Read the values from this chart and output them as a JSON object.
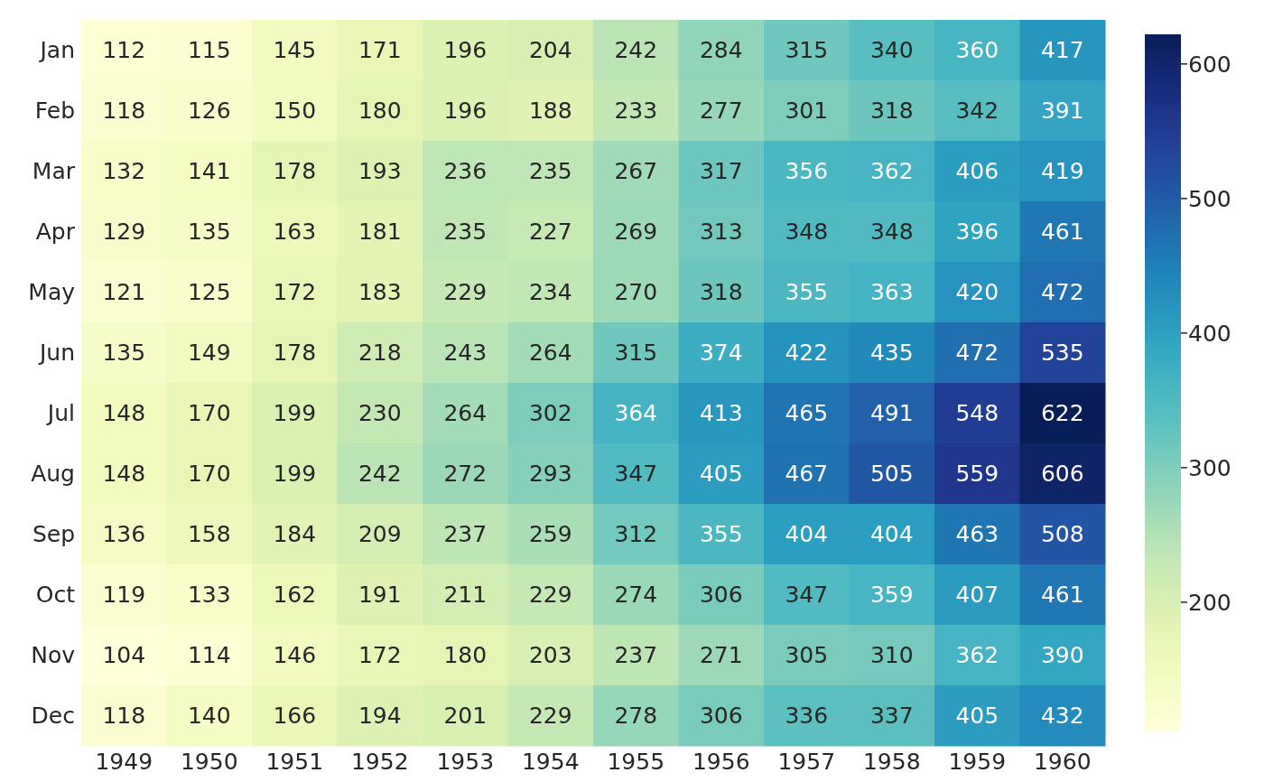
{
  "chart_data": {
    "type": "heatmap",
    "categories": [
      "1949",
      "1950",
      "1951",
      "1952",
      "1953",
      "1954",
      "1955",
      "1956",
      "1957",
      "1958",
      "1959",
      "1960"
    ],
    "y_categories": [
      "Jan",
      "Feb",
      "Mar",
      "Apr",
      "May",
      "Jun",
      "Jul",
      "Aug",
      "Sep",
      "Oct",
      "Nov",
      "Dec"
    ],
    "cells": [
      [
        112,
        115,
        145,
        171,
        196,
        204,
        242,
        284,
        315,
        340,
        360,
        417
      ],
      [
        118,
        126,
        150,
        180,
        196,
        188,
        233,
        277,
        301,
        318,
        342,
        391
      ],
      [
        132,
        141,
        178,
        193,
        236,
        235,
        267,
        317,
        356,
        362,
        406,
        419
      ],
      [
        129,
        135,
        163,
        181,
        235,
        227,
        269,
        313,
        348,
        348,
        396,
        461
      ],
      [
        121,
        125,
        172,
        183,
        229,
        234,
        270,
        318,
        355,
        363,
        420,
        472
      ],
      [
        135,
        149,
        178,
        218,
        243,
        264,
        315,
        374,
        422,
        435,
        472,
        535
      ],
      [
        148,
        170,
        199,
        230,
        264,
        302,
        364,
        413,
        465,
        491,
        548,
        622
      ],
      [
        148,
        170,
        199,
        242,
        272,
        293,
        347,
        405,
        467,
        505,
        559,
        606
      ],
      [
        136,
        158,
        184,
        209,
        237,
        259,
        312,
        355,
        404,
        404,
        463,
        508
      ],
      [
        119,
        133,
        162,
        191,
        211,
        229,
        274,
        306,
        347,
        359,
        407,
        461
      ],
      [
        104,
        114,
        146,
        172,
        180,
        203,
        237,
        271,
        305,
        310,
        362,
        390
      ],
      [
        118,
        140,
        166,
        194,
        201,
        229,
        278,
        306,
        336,
        337,
        405,
        432
      ]
    ],
    "clim": [
      104,
      622
    ],
    "cticks": [
      200,
      300,
      400,
      500,
      600
    ],
    "data_labels": true
  }
}
